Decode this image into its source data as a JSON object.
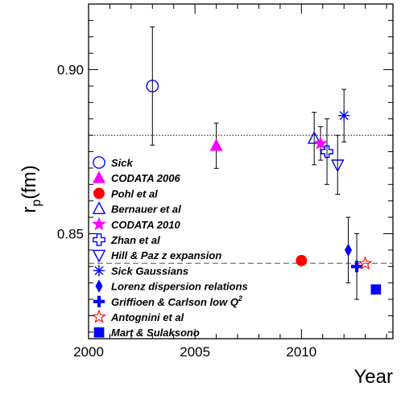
{
  "chart_data": {
    "type": "scatter",
    "xlabel": "Year",
    "ylabel_main": "r",
    "ylabel_sub": "p",
    "ylabel_suffix": "(fm)",
    "xlim": [
      2000,
      2014.3
    ],
    "ylim": [
      0.818,
      0.92
    ],
    "x_ticks": [
      {
        "value": 2000,
        "label": "2000"
      },
      {
        "value": 2005,
        "label": "2005"
      },
      {
        "value": 2010,
        "label": "2010"
      }
    ],
    "y_ticks": [
      {
        "value": 0.85,
        "label": "0.85"
      },
      {
        "value": 0.9,
        "label": "0.90"
      }
    ],
    "reference_lines": [
      {
        "y": 0.88,
        "style": "dotted",
        "color": "#000000"
      },
      {
        "y": 0.841,
        "style": "dashed",
        "color": "#555555"
      }
    ],
    "series": [
      {
        "name": "Sick",
        "marker": "open-circle",
        "color": "#0000ff",
        "points": [
          {
            "x": 2003.0,
            "y": 0.895,
            "err": 0.018
          }
        ]
      },
      {
        "name": "CODATA 2006",
        "marker": "filled-triangle",
        "color": "#ff00ff",
        "points": [
          {
            "x": 2006.0,
            "y": 0.8768,
            "err": 0.0069
          }
        ]
      },
      {
        "name": "Pohl et al",
        "marker": "filled-circle",
        "color": "#ff0000",
        "points": [
          {
            "x": 2010.0,
            "y": 0.8418,
            "err": 0
          }
        ]
      },
      {
        "name": "Bernauer et al",
        "marker": "open-triangle",
        "color": "#0000ff",
        "points": [
          {
            "x": 2010.6,
            "y": 0.879,
            "err": 0.008
          }
        ]
      },
      {
        "name": "CODATA 2010",
        "marker": "star",
        "color": "#ff00ff",
        "points": [
          {
            "x": 2010.9,
            "y": 0.8775,
            "err": 0.0051
          }
        ]
      },
      {
        "name": "Zhan et al",
        "marker": "open-cross",
        "color": "#0000ff",
        "points": [
          {
            "x": 2011.2,
            "y": 0.875,
            "err": 0.01
          }
        ]
      },
      {
        "name": "Hill & Paz z expansion",
        "marker": "open-triangle-down",
        "color": "#0000ff",
        "points": [
          {
            "x": 2011.7,
            "y": 0.871,
            "err": 0.009
          }
        ]
      },
      {
        "name": "Sick Gaussians",
        "marker": "asterisk",
        "color": "#0000ff",
        "points": [
          {
            "x": 2012.0,
            "y": 0.886,
            "err": 0.008
          }
        ]
      },
      {
        "name": "Lorenz dispersion relations",
        "marker": "filled-diamond",
        "color": "#0000ff",
        "points": [
          {
            "x": 2012.2,
            "y": 0.845,
            "err": 0.01
          }
        ]
      },
      {
        "name": "Griffioen & Carlson low Q",
        "name_sup": "2",
        "marker": "filled-cross",
        "color": "#0000ff",
        "points": [
          {
            "x": 2012.6,
            "y": 0.84,
            "err": 0.01
          }
        ]
      },
      {
        "name": "Antognini et al",
        "marker": "open-star",
        "color": "#ff0000",
        "points": [
          {
            "x": 2013.0,
            "y": 0.8409,
            "err": 0
          }
        ]
      },
      {
        "name": "Mart & Sulaksono",
        "marker": "filled-square",
        "color": "#0000ff",
        "points": [
          {
            "x": 2013.5,
            "y": 0.833,
            "err": 0
          }
        ]
      }
    ],
    "legend_position": "left-middle",
    "grid": false
  }
}
